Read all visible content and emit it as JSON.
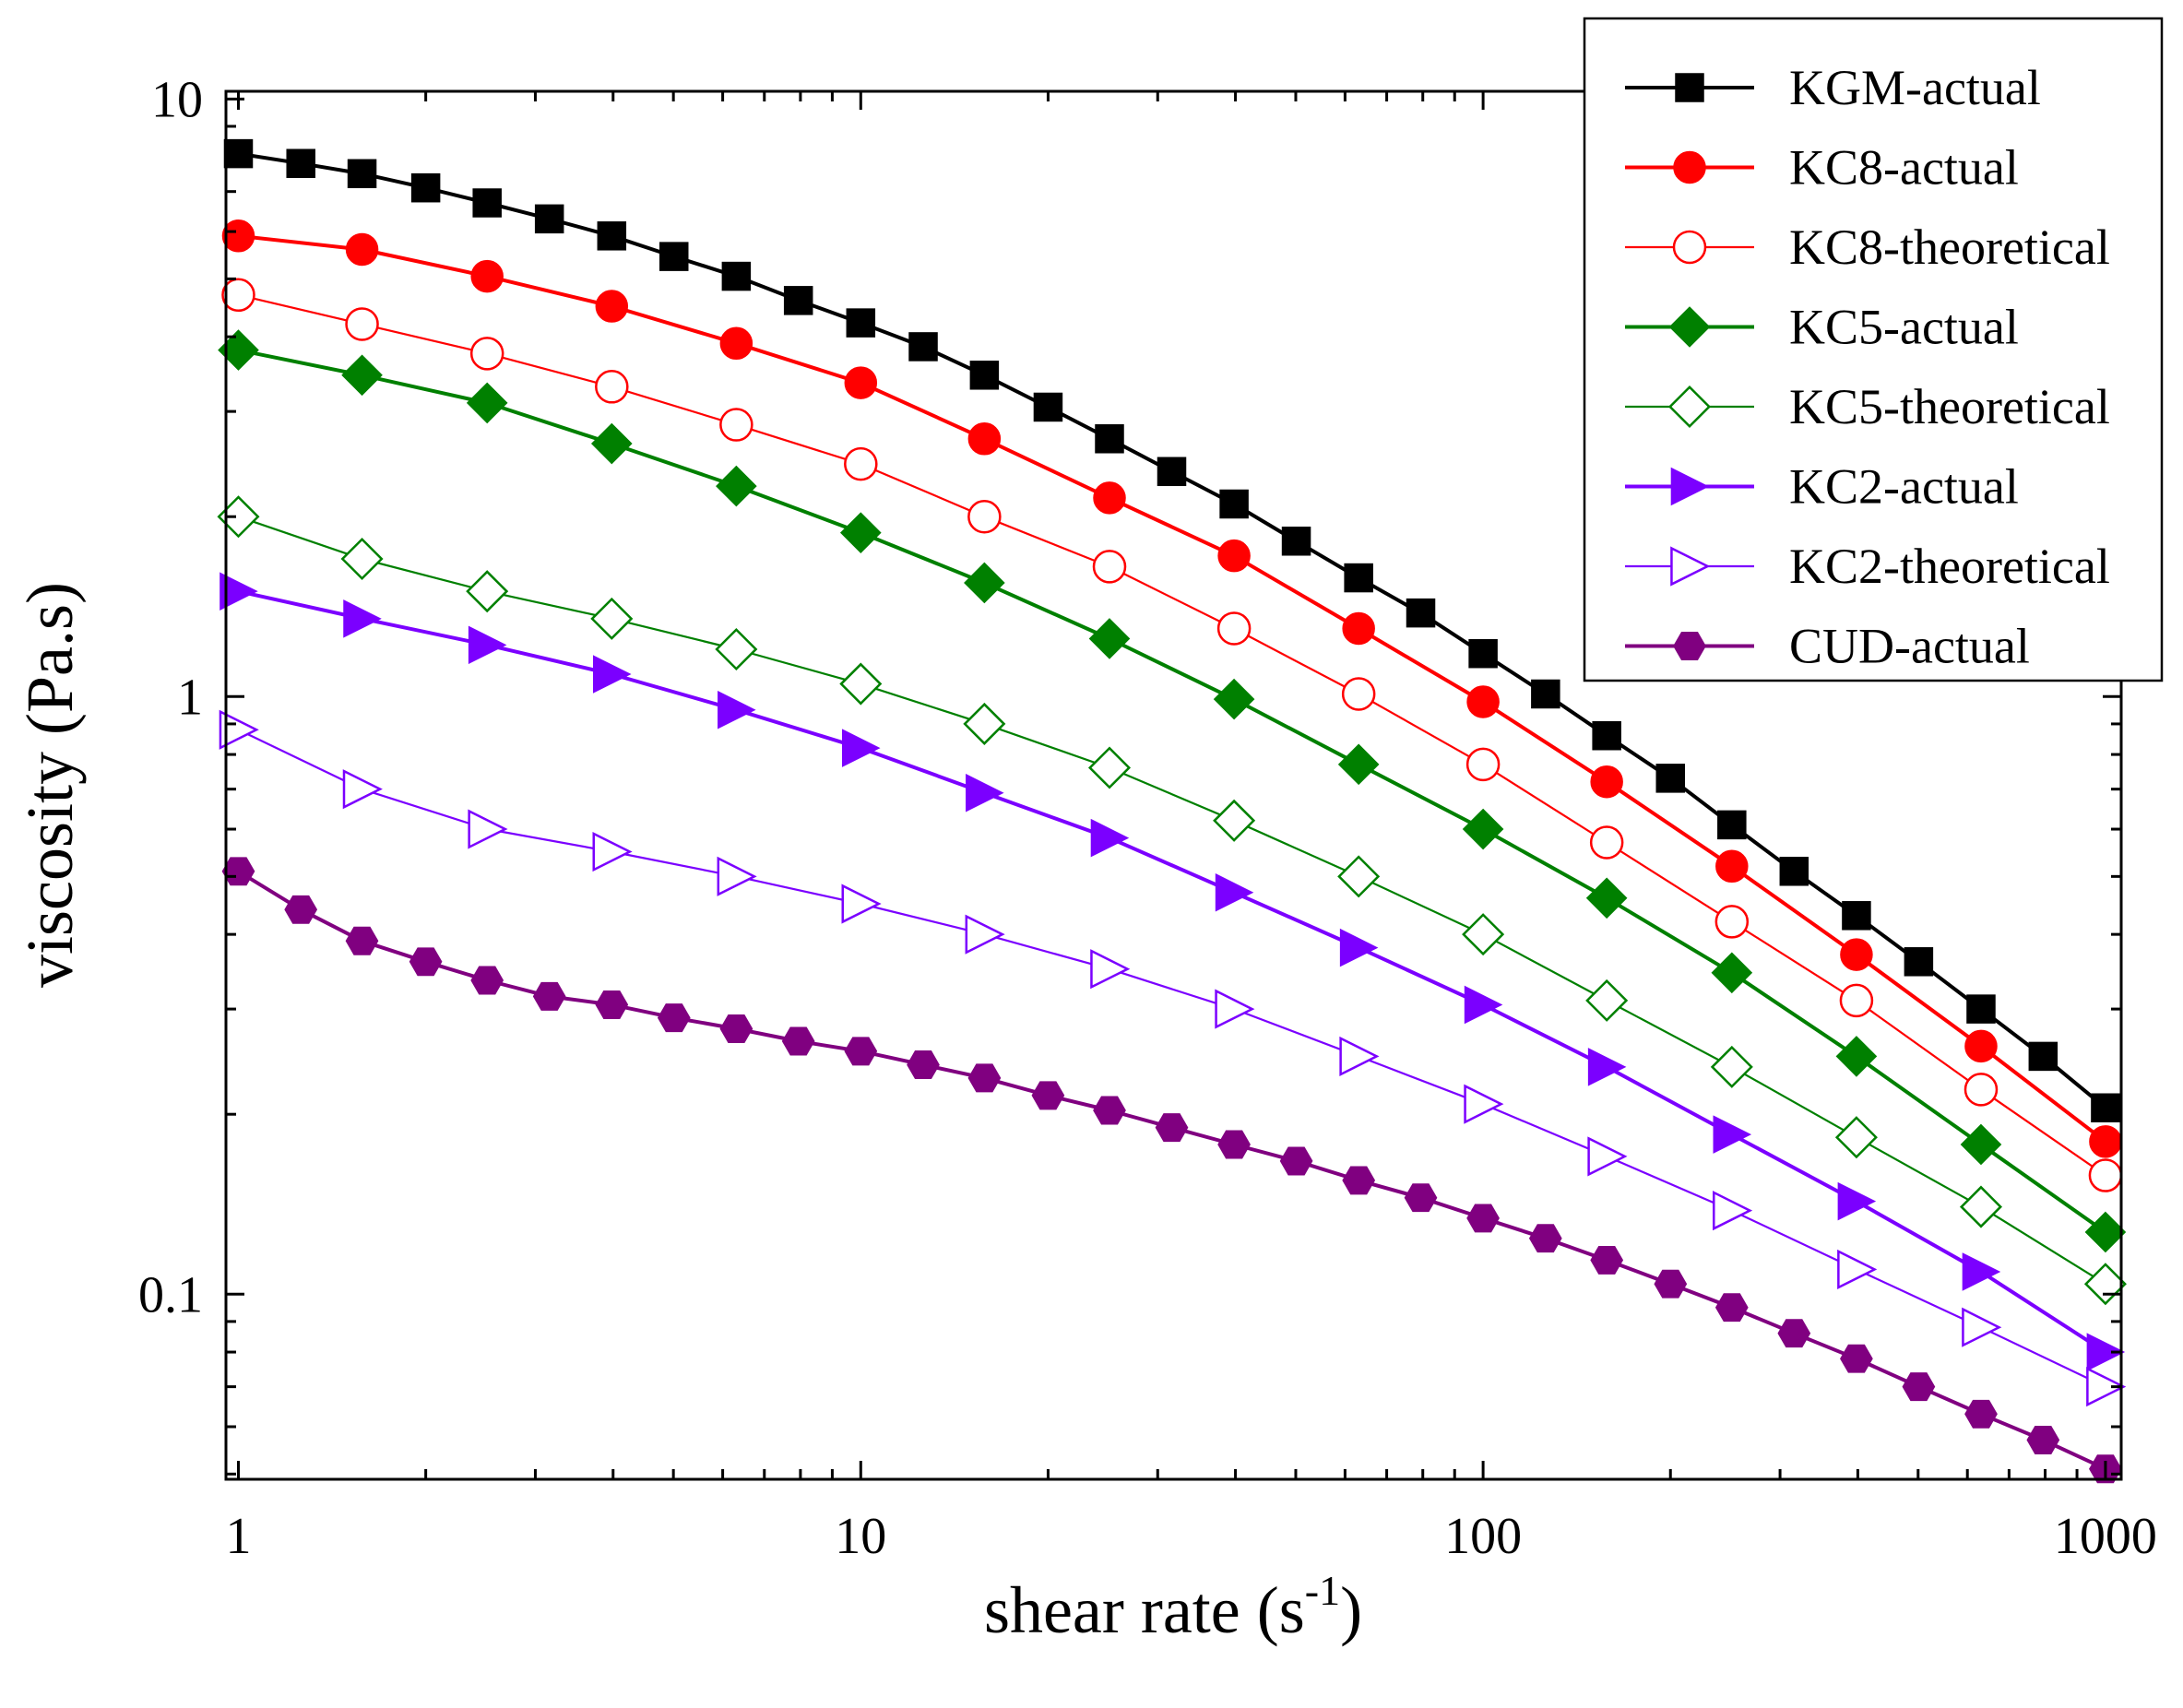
{
  "chart_data": {
    "type": "line",
    "title": "",
    "xlabel": "shear rate (s",
    "xlabel_superscript": "-1",
    "xlabel_suffix": ")",
    "ylabel": "viscosity (Pa.s)",
    "xscale": "log",
    "yscale": "log",
    "xlim": [
      0.955,
      1060
    ],
    "ylim": [
      0.049,
      10.3
    ],
    "x_ticks": [
      1,
      10,
      100,
      1000
    ],
    "x_tick_labels": [
      "1",
      "10",
      "100",
      "1000"
    ],
    "y_ticks": [
      0.1,
      1,
      10
    ],
    "y_tick_labels": [
      "0.1",
      "1",
      "10"
    ],
    "grid": false,
    "legend_position": "top-right",
    "series": [
      {
        "name": "KGM-actual",
        "color": "#000000",
        "marker": "square",
        "filled": true,
        "x": [
          1,
          1.26,
          1.58,
          2,
          2.51,
          3.16,
          3.98,
          5.01,
          6.31,
          7.94,
          10,
          12.6,
          15.8,
          20,
          25.1,
          31.6,
          39.8,
          50.1,
          63.1,
          79.4,
          100,
          126,
          158,
          200,
          251,
          316,
          398,
          501,
          631,
          794,
          1000
        ],
        "values": [
          8.1,
          7.8,
          7.5,
          7.1,
          6.7,
          6.3,
          5.9,
          5.45,
          5.05,
          4.6,
          4.22,
          3.85,
          3.45,
          3.05,
          2.7,
          2.38,
          2.1,
          1.82,
          1.58,
          1.38,
          1.18,
          1.01,
          0.86,
          0.73,
          0.61,
          0.51,
          0.43,
          0.36,
          0.3,
          0.25,
          0.205
        ]
      },
      {
        "name": "KC8-actual",
        "color": "#ff0000",
        "marker": "circle",
        "filled": true,
        "x": [
          1,
          1.58,
          2.51,
          3.98,
          6.31,
          10,
          15.8,
          25.1,
          39.8,
          63.1,
          100,
          158,
          251,
          398,
          631,
          1000
        ],
        "values": [
          5.9,
          5.6,
          5.05,
          4.5,
          3.9,
          3.35,
          2.7,
          2.15,
          1.72,
          1.3,
          0.98,
          0.72,
          0.52,
          0.37,
          0.26,
          0.18
        ]
      },
      {
        "name": "KC8-theoretical",
        "color": "#ff0000",
        "marker": "circle",
        "filled": false,
        "x": [
          1,
          1.58,
          2.51,
          3.98,
          6.31,
          10,
          15.8,
          25.1,
          39.8,
          63.1,
          100,
          158,
          251,
          398,
          631,
          1000
        ],
        "values": [
          4.7,
          4.2,
          3.75,
          3.3,
          2.85,
          2.45,
          2.0,
          1.65,
          1.3,
          1.01,
          0.77,
          0.57,
          0.42,
          0.31,
          0.22,
          0.158
        ]
      },
      {
        "name": "KC5-actual",
        "color": "#008000",
        "marker": "diamond",
        "filled": true,
        "x": [
          1,
          1.58,
          2.51,
          3.98,
          6.31,
          10,
          15.8,
          25.1,
          39.8,
          63.1,
          100,
          158,
          251,
          398,
          631,
          1000
        ],
        "values": [
          3.8,
          3.45,
          3.1,
          2.65,
          2.25,
          1.88,
          1.55,
          1.25,
          0.99,
          0.77,
          0.6,
          0.46,
          0.345,
          0.25,
          0.178,
          0.127
        ]
      },
      {
        "name": "KC5-theoretical",
        "color": "#008000",
        "marker": "diamond",
        "filled": false,
        "x": [
          1,
          1.58,
          2.51,
          3.98,
          6.31,
          10,
          15.8,
          25.1,
          39.8,
          63.1,
          100,
          158,
          251,
          398,
          631,
          1000
        ],
        "values": [
          2.0,
          1.7,
          1.5,
          1.35,
          1.2,
          1.05,
          0.9,
          0.76,
          0.62,
          0.5,
          0.4,
          0.31,
          0.24,
          0.183,
          0.14,
          0.104
        ]
      },
      {
        "name": "KC2-actual",
        "color": "#7b00ff",
        "marker": "triangle-right",
        "filled": true,
        "x": [
          1,
          1.58,
          2.51,
          3.98,
          6.31,
          10,
          15.8,
          25.1,
          39.8,
          63.1,
          100,
          158,
          251,
          398,
          631,
          1000
        ],
        "values": [
          1.5,
          1.35,
          1.22,
          1.09,
          0.95,
          0.82,
          0.69,
          0.58,
          0.47,
          0.38,
          0.305,
          0.24,
          0.185,
          0.143,
          0.109,
          0.08
        ]
      },
      {
        "name": "KC2-theoretical",
        "color": "#7b00ff",
        "marker": "triangle-right",
        "filled": false,
        "x": [
          1,
          1.58,
          2.51,
          3.98,
          6.31,
          10,
          15.8,
          25.1,
          39.8,
          63.1,
          100,
          158,
          251,
          398,
          631,
          1000
        ],
        "values": [
          0.88,
          0.7,
          0.6,
          0.55,
          0.5,
          0.45,
          0.4,
          0.35,
          0.3,
          0.25,
          0.208,
          0.17,
          0.138,
          0.11,
          0.088,
          0.07
        ]
      },
      {
        "name": "CUD-actual",
        "color": "#800080",
        "marker": "hexagon",
        "filled": true,
        "x": [
          1,
          1.26,
          1.58,
          2,
          2.51,
          3.16,
          3.98,
          5.01,
          6.31,
          7.94,
          10,
          12.6,
          15.8,
          20,
          25.1,
          31.6,
          39.8,
          50.1,
          63.1,
          79.4,
          100,
          126,
          158,
          200,
          251,
          316,
          398,
          501,
          631,
          794,
          1000
        ],
        "values": [
          0.51,
          0.44,
          0.39,
          0.36,
          0.335,
          0.315,
          0.305,
          0.29,
          0.278,
          0.265,
          0.255,
          0.242,
          0.23,
          0.215,
          0.203,
          0.19,
          0.178,
          0.167,
          0.155,
          0.145,
          0.134,
          0.124,
          0.114,
          0.104,
          0.095,
          0.086,
          0.078,
          0.07,
          0.063,
          0.057,
          0.051
        ]
      }
    ]
  }
}
